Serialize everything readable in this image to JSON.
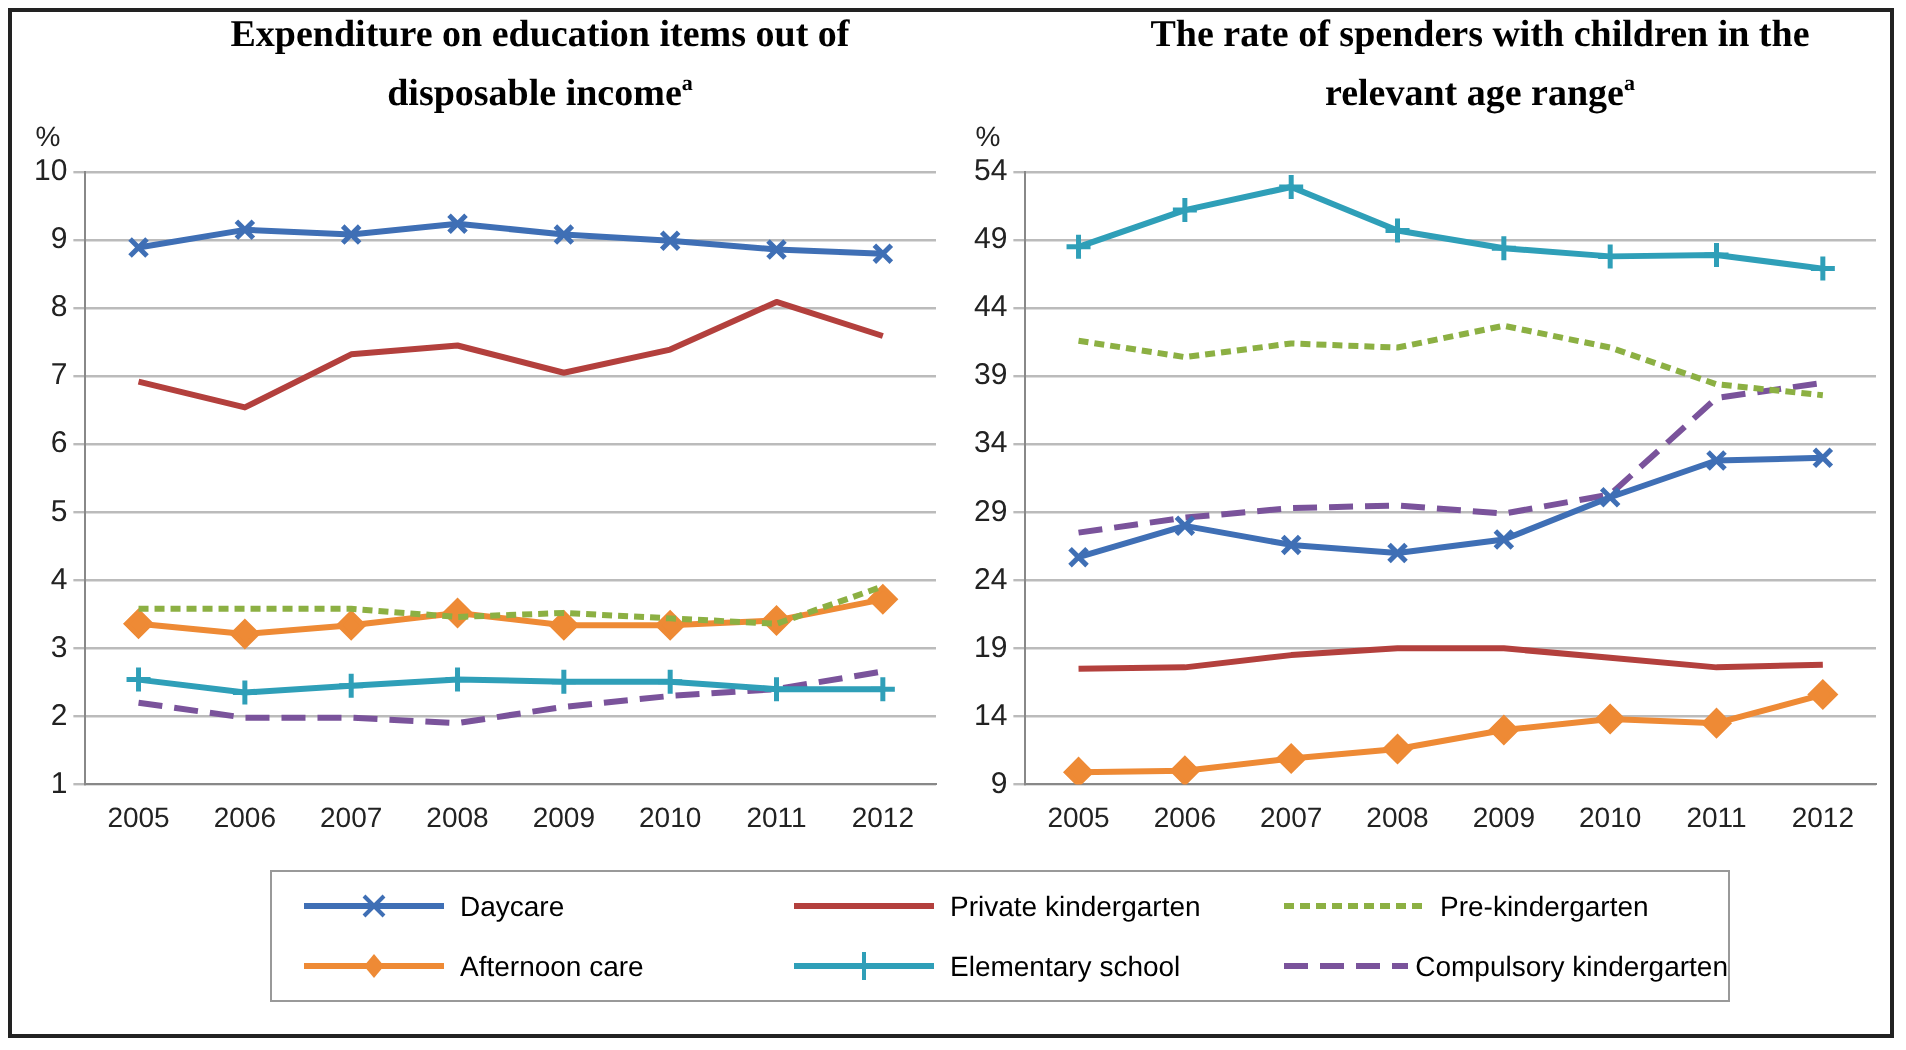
{
  "chart_data": [
    {
      "type": "line",
      "title": "Expenditure on education items out of disposable income$^{a}$",
      "ylabel": "%",
      "categories": [
        "2005",
        "2006",
        "2007",
        "2008",
        "2009",
        "2010",
        "2011",
        "2012"
      ],
      "ylim": [
        1,
        10
      ],
      "yticks": [
        1,
        2,
        3,
        4,
        5,
        6,
        7,
        8,
        9,
        10
      ],
      "grid": "y",
      "legend": "bottom",
      "series": [
        {
          "name": "Daycare",
          "color": "#3f6fb5",
          "marker": "cross",
          "values": [
            8.89,
            9.15,
            9.08,
            9.24,
            9.08,
            8.99,
            8.86,
            8.8
          ]
        },
        {
          "name": "Private kindergarten",
          "color": "#b3403d",
          "marker": "none",
          "values": [
            6.92,
            6.54,
            7.32,
            7.45,
            7.05,
            7.39,
            8.09,
            7.59
          ]
        },
        {
          "name": "Pre-kindergarten",
          "color": "#8cb043",
          "marker": "none",
          "line_style": "dotted",
          "values": [
            3.58,
            3.58,
            3.58,
            3.46,
            3.52,
            3.44,
            3.36,
            3.91
          ]
        },
        {
          "name": "Afternoon care",
          "color": "#ee8a35",
          "marker": "diamond",
          "values": [
            3.36,
            3.21,
            3.34,
            3.52,
            3.34,
            3.34,
            3.41,
            3.72
          ]
        },
        {
          "name": "Elementary school",
          "color": "#2f9fb8",
          "marker": "plus",
          "values": [
            2.54,
            2.35,
            2.45,
            2.54,
            2.51,
            2.51,
            2.4,
            2.4
          ]
        },
        {
          "name": "Compulsory kindergarten",
          "color": "#7a539b",
          "marker": "none",
          "line_style": "dashed",
          "values": [
            2.2,
            1.98,
            1.98,
            1.9,
            2.14,
            2.3,
            2.4,
            2.66
          ]
        }
      ]
    },
    {
      "type": "line",
      "title": "The rate of spenders with children in the relevant age range$^{a}$",
      "ylabel": "%",
      "categories": [
        "2005",
        "2006",
        "2007",
        "2008",
        "2009",
        "2010",
        "2011",
        "2012"
      ],
      "ylim": [
        9,
        54
      ],
      "yticks": [
        9,
        14,
        19,
        24,
        29,
        34,
        39,
        44,
        49,
        54
      ],
      "grid": "y",
      "legend": "bottom",
      "series": [
        {
          "name": "Daycare",
          "color": "#3f6fb5",
          "marker": "cross",
          "values": [
            25.7,
            28.0,
            26.6,
            26.0,
            27.0,
            30.1,
            32.8,
            33.0
          ]
        },
        {
          "name": "Private kindergarten",
          "color": "#b3403d",
          "marker": "none",
          "values": [
            17.5,
            17.6,
            18.5,
            19.0,
            19.0,
            18.3,
            17.6,
            17.8
          ]
        },
        {
          "name": "Pre-kindergarten",
          "color": "#8cb043",
          "marker": "none",
          "line_style": "dotted",
          "values": [
            41.6,
            40.4,
            41.4,
            41.1,
            42.7,
            41.1,
            38.4,
            37.6
          ]
        },
        {
          "name": "Afternoon care",
          "color": "#ee8a35",
          "marker": "diamond",
          "values": [
            9.9,
            10.0,
            10.9,
            11.6,
            13.0,
            13.8,
            13.5,
            15.6
          ]
        },
        {
          "name": "Elementary school",
          "color": "#2f9fb8",
          "marker": "plus",
          "values": [
            48.5,
            51.2,
            52.9,
            49.7,
            48.4,
            47.8,
            47.9,
            46.9
          ]
        },
        {
          "name": "Compulsory kindergarten",
          "color": "#7a539b",
          "marker": "none",
          "line_style": "dashed",
          "values": [
            27.5,
            28.6,
            29.3,
            29.5,
            28.9,
            30.3,
            37.4,
            38.5
          ]
        }
      ]
    }
  ]
}
